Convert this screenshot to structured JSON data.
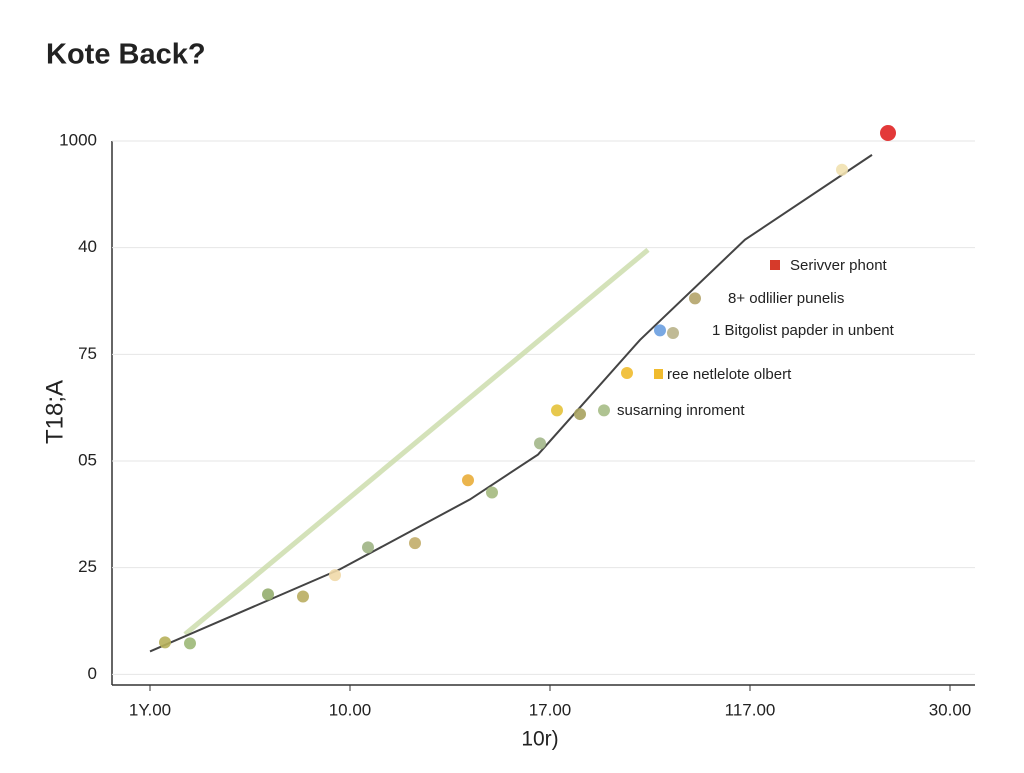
{
  "chart_data": {
    "type": "scatter",
    "title": "Kote Back?",
    "xlabel": "10r)",
    "ylabel": "T18;A",
    "xlim": [
      -0.19,
      4.125
    ],
    "ylim": [
      -2,
      100
    ],
    "xticks": [
      {
        "value": 0,
        "label": "1Y.00"
      },
      {
        "value": 1,
        "label": "10.00"
      },
      {
        "value": 2,
        "label": "17.00"
      },
      {
        "value": 3,
        "label": "117.00"
      },
      {
        "value": 4,
        "label": "30.00"
      }
    ],
    "yticks": [
      0,
      {
        "value": 20,
        "label": "25"
      },
      {
        "value": 40,
        "label": "05"
      },
      {
        "value": 60,
        "label": "75"
      },
      {
        "value": 80,
        "label": "40"
      },
      {
        "value": 100,
        "label": "1000"
      }
    ],
    "grid": true,
    "curve": {
      "color": "#444444",
      "x": [
        0,
        0.95,
        1.6,
        1.94,
        2.45,
        2.975,
        3.61
      ],
      "y": [
        4.3,
        19.7,
        32.8,
        41.2,
        62.7,
        81.5,
        97.4
      ]
    },
    "band": {
      "color": "#c9dba8",
      "x": [
        0.175,
        2.49
      ],
      "y": [
        7.5,
        79.6
      ]
    },
    "points": {
      "x": [
        0.075,
        0.2,
        0.59,
        0.765,
        0.925,
        1.09,
        1.325,
        1.59,
        1.71,
        1.95,
        2.035,
        2.15,
        2.27,
        2.385,
        2.55,
        2.615,
        2.725,
        3.46,
        3.69
      ],
      "y": [
        6.0,
        5.8,
        15.0,
        14.6,
        18.6,
        23.8,
        24.6,
        36.4,
        34.1,
        43.3,
        49.5,
        48.8,
        49.5,
        56.5,
        64.5,
        64.0,
        70.5,
        94.6,
        101.5
      ],
      "colors": [
        "#b7b05a",
        "#9cb877",
        "#93ad6e",
        "#b9ad60",
        "#f1d9a8",
        "#9fb484",
        "#c2ad6a",
        "#e9ad3a",
        "#a4b97e",
        "#a3b78a",
        "#e4c23a",
        "#a7a25f",
        "#a6bd86",
        "#f0bb2e",
        "#6a9fe0",
        "#b9b38a",
        "#b4a46a",
        "#f1e1b0",
        "#e02424"
      ]
    },
    "annotations": [
      {
        "text": "Serivver phont",
        "color": "#c0392b"
      },
      {
        "text": "8+ odlilier punelis",
        "color": "#333333"
      },
      {
        "text": "1 Bitgolist papder in unbent",
        "color": "#3a5fb0"
      },
      {
        "text": "ree netlelote olbert",
        "color": "#c8c23a"
      },
      {
        "text": "susarning inroment",
        "color": "#333333"
      }
    ]
  }
}
